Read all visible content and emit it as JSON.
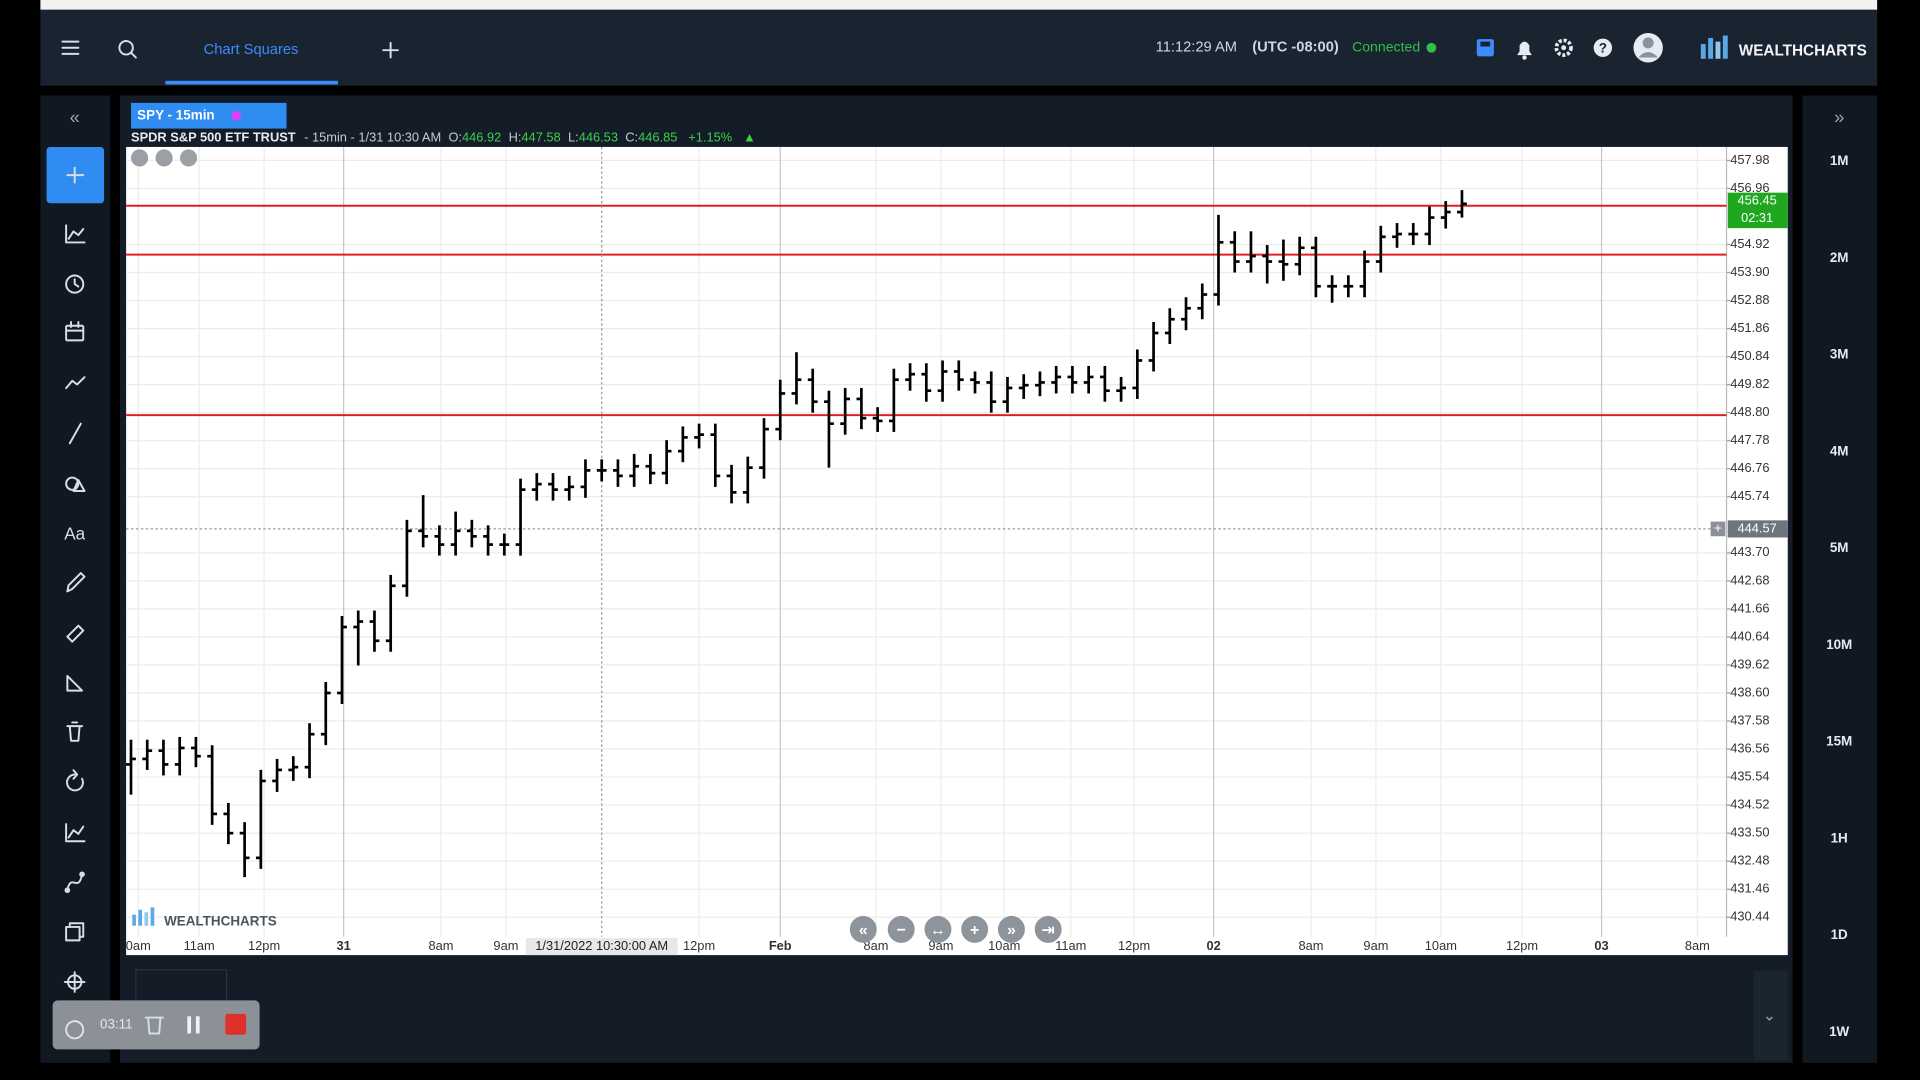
{
  "header": {
    "tab": "Chart Squares",
    "time": "11:12:29 AM",
    "timezone": "(UTC -08:00)",
    "status": "Connected",
    "brand": "WEALTHCHARTS"
  },
  "symbol": {
    "tab": "SPY - 15min",
    "name": "SPDR S&P 500 ETF TRUST",
    "interval": "- 15min - 1/31 10:30 AM",
    "ohlc": [
      {
        "label": "O:",
        "value": 446.92
      },
      {
        "label": "H:",
        "value": 447.58
      },
      {
        "label": "L:",
        "value": 446.53
      },
      {
        "label": "C:",
        "value": 446.85
      }
    ],
    "change": "+1.15%"
  },
  "sidebar": {
    "text_tool": "Aa"
  },
  "watermark": "WEALTHCHARTS",
  "timeframes": [
    "1M",
    "2M",
    "3M",
    "4M",
    "5M",
    "10M",
    "15M",
    "1H",
    "1D",
    "1W"
  ],
  "recorder": {
    "elapsed": "03:11"
  },
  "chart_data": {
    "type": "ohlc",
    "color": "#000000",
    "open": [
      436.0,
      436.2,
      436.5,
      436.0,
      436.6,
      436.3,
      434.2,
      433.5,
      432.6,
      435.4,
      435.8,
      435.9,
      437.1,
      438.6,
      441.0,
      441.2,
      440.5,
      442.5,
      444.5,
      444.3,
      444.0,
      444.5,
      444.3,
      444.0,
      444.0,
      446.0,
      446.2,
      446.0,
      446.1,
      446.7,
      446.7,
      446.5,
      446.85,
      446.6,
      447.4,
      447.9,
      448.0,
      446.5,
      445.9,
      446.8,
      448.2,
      449.5,
      450.0,
      449.2,
      448.4,
      449.3,
      448.6,
      448.5,
      450.0,
      450.2,
      449.6,
      450.3,
      450.0,
      449.9,
      449.2,
      449.7,
      449.8,
      449.9,
      450.1,
      449.9,
      450.1,
      449.6,
      449.7,
      450.7,
      451.7,
      452.2,
      452.6,
      453.1,
      455.0,
      454.3,
      454.5,
      454.3,
      454.2,
      454.8,
      453.4,
      453.4,
      453.4,
      454.3,
      455.2,
      455.3,
      455.3,
      455.9,
      456.1
    ],
    "high": [
      436.9,
      436.9,
      436.9,
      437.0,
      437.0,
      436.7,
      434.6,
      433.9,
      435.8,
      436.2,
      436.3,
      437.5,
      439.0,
      441.4,
      441.6,
      441.6,
      442.9,
      444.9,
      445.8,
      444.7,
      445.2,
      444.9,
      444.7,
      444.4,
      446.4,
      446.6,
      446.6,
      446.5,
      447.1,
      447.1,
      447.1,
      447.3,
      447.3,
      447.8,
      448.3,
      448.4,
      448.4,
      446.9,
      447.2,
      448.6,
      450.0,
      451.0,
      450.4,
      449.6,
      449.7,
      449.7,
      449.0,
      450.4,
      450.6,
      450.6,
      450.7,
      450.7,
      450.3,
      450.3,
      450.1,
      450.2,
      450.3,
      450.5,
      450.5,
      450.5,
      450.5,
      450.1,
      451.1,
      452.1,
      452.6,
      453.0,
      453.5,
      456.0,
      455.4,
      455.4,
      454.9,
      455.1,
      455.2,
      455.2,
      453.8,
      453.8,
      454.7,
      455.6,
      455.7,
      455.7,
      456.3,
      456.5,
      456.9
    ],
    "low": [
      434.9,
      435.8,
      435.6,
      435.6,
      435.9,
      433.8,
      433.1,
      431.9,
      432.2,
      435.0,
      435.4,
      435.5,
      436.7,
      438.2,
      439.6,
      440.1,
      440.1,
      442.1,
      443.9,
      443.6,
      443.6,
      443.9,
      443.6,
      443.6,
      443.6,
      445.6,
      445.6,
      445.6,
      445.7,
      446.3,
      446.1,
      446.1,
      446.2,
      446.2,
      447.0,
      447.5,
      446.1,
      445.5,
      445.5,
      446.4,
      447.8,
      449.1,
      448.8,
      446.8,
      448.0,
      448.2,
      448.1,
      448.1,
      449.6,
      449.2,
      449.2,
      449.6,
      449.5,
      448.8,
      448.8,
      449.3,
      449.4,
      449.5,
      449.5,
      449.5,
      449.2,
      449.2,
      449.3,
      450.3,
      451.3,
      451.8,
      452.2,
      452.7,
      453.9,
      453.9,
      453.5,
      453.6,
      453.8,
      453.0,
      452.8,
      453.0,
      453.0,
      453.9,
      454.8,
      454.9,
      454.9,
      455.5,
      455.9
    ],
    "close": [
      436.2,
      436.5,
      436.0,
      436.6,
      436.3,
      434.2,
      433.5,
      432.6,
      435.4,
      435.8,
      435.9,
      437.1,
      438.6,
      441.0,
      441.2,
      440.5,
      442.5,
      444.5,
      444.3,
      444.0,
      444.5,
      444.3,
      444.0,
      444.0,
      446.0,
      446.2,
      446.0,
      446.1,
      446.7,
      446.7,
      446.5,
      446.85,
      446.6,
      447.4,
      447.9,
      448.0,
      446.5,
      445.9,
      446.8,
      448.2,
      449.5,
      450.0,
      449.2,
      448.4,
      449.3,
      448.6,
      448.5,
      450.0,
      450.2,
      449.6,
      450.3,
      450.0,
      449.9,
      449.2,
      449.7,
      449.8,
      449.9,
      450.1,
      449.9,
      450.1,
      449.6,
      449.7,
      450.7,
      451.7,
      452.2,
      452.6,
      453.1,
      455.0,
      454.3,
      454.5,
      454.3,
      454.2,
      454.8,
      453.4,
      453.4,
      453.4,
      454.3,
      455.2,
      455.3,
      455.3,
      455.9,
      456.1,
      456.4
    ],
    "xlim": [
      -0.3,
      98.3
    ],
    "xticks": [
      {
        "value": 0.45,
        "label": "0am"
      },
      {
        "value": 4.2,
        "label": "11am"
      },
      {
        "value": 8.2,
        "label": "12pm"
      },
      {
        "value": 13.1,
        "label": "31"
      },
      {
        "value": 19.1,
        "label": "8am"
      },
      {
        "value": 23.1,
        "label": "9am"
      },
      {
        "value": 35.0,
        "label": "12pm"
      },
      {
        "value": 40.0,
        "label": "Feb"
      },
      {
        "value": 45.9,
        "label": "8am"
      },
      {
        "value": 49.9,
        "label": "9am"
      },
      {
        "value": 53.8,
        "label": "10am"
      },
      {
        "value": 57.9,
        "label": "11am"
      },
      {
        "value": 61.8,
        "label": "12pm"
      },
      {
        "value": 66.7,
        "label": "02"
      },
      {
        "value": 72.7,
        "label": "8am"
      },
      {
        "value": 76.7,
        "label": "9am"
      },
      {
        "value": 80.7,
        "label": "10am"
      },
      {
        "value": 85.7,
        "label": "12pm"
      },
      {
        "value": 90.6,
        "label": "03"
      },
      {
        "value": 96.5,
        "label": "8am"
      }
    ],
    "day_ticks": [
      "31",
      "Feb",
      "02",
      "03"
    ],
    "ylim": [
      429.73,
      458.47
    ],
    "yticks": [
      457.98,
      456.96,
      454.92,
      {
        "value": 453.9,
        "label": "453.90"
      },
      452.88,
      451.86,
      450.84,
      449.82,
      {
        "value": 448.8,
        "label": "448.80"
      },
      447.78,
      446.76,
      445.74,
      {
        "value": 443.7,
        "label": "443.70"
      },
      442.68,
      441.66,
      440.64,
      439.62,
      {
        "value": 438.6,
        "label": "438.60"
      },
      437.58,
      436.56,
      435.54,
      434.52,
      {
        "value": 433.5,
        "label": "433.50"
      },
      432.48,
      431.46,
      430.44
    ],
    "grid": true,
    "hlines": [
      456.33,
      454.55,
      448.71
    ],
    "hline_color": "#e02020",
    "last_price": 456.45,
    "countdown": "02:31",
    "last_color": "#1fa81f",
    "crosshair": {
      "y": 444.57,
      "x": 29.0,
      "x_label": "1/31/2022 10:30:00 AM"
    }
  }
}
